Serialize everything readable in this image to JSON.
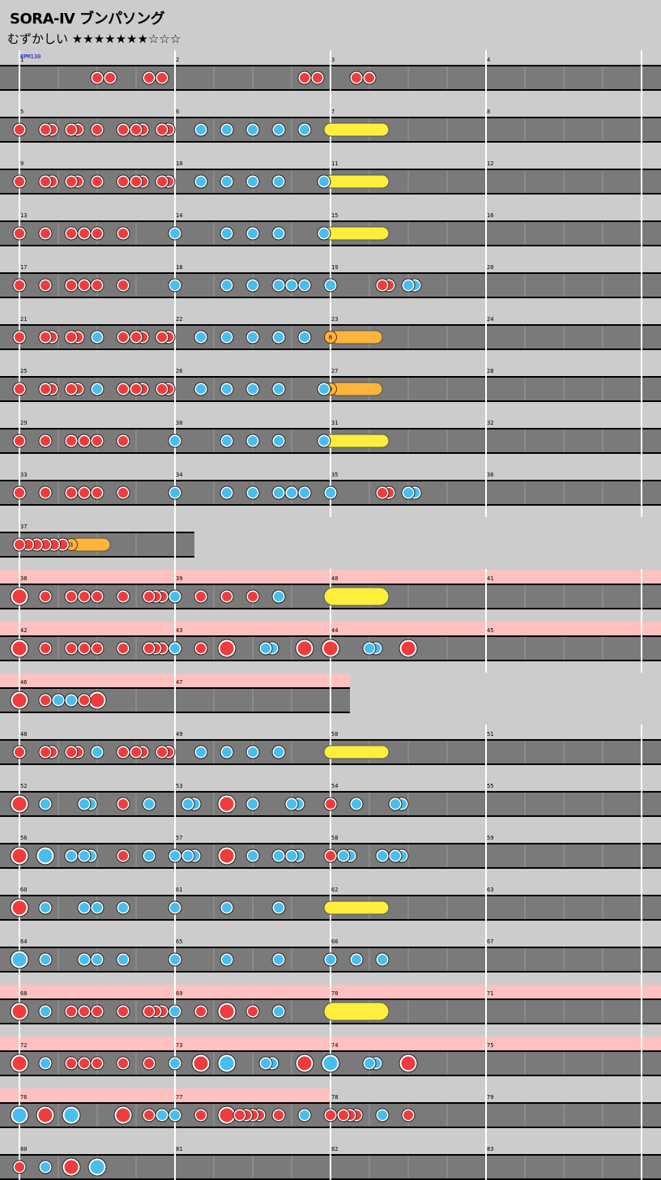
{
  "header": {
    "title": "SORA-Ⅳ ブンパソング",
    "difficulty_label": "むずかしい",
    "stars_filled": 7,
    "stars_total": 10,
    "stars_text": "★★★★★★★☆☆☆",
    "bpm_label": "BPM130"
  },
  "colors": {
    "background": "#cccccc",
    "lane": "#7a7a7a",
    "gogo_band": "#ffc0c0",
    "don": "#f03c3c",
    "ka": "#48bef0",
    "drumroll": "#ffee3c",
    "balloon": "#ffb43c"
  },
  "note_legend": {
    "d": "don",
    "k": "ka",
    "D": "big don",
    "K": "big ka",
    "R": "drumroll",
    "Y": "big drumroll",
    "B": "balloon"
  },
  "rows": [
    {
      "m": [
        1,
        2,
        3,
        4
      ],
      "g": 0,
      "n": [
        [
          6,
          "d"
        ],
        [
          7,
          "d"
        ],
        [
          10,
          "d"
        ],
        [
          11,
          "d"
        ],
        [
          22,
          "d"
        ],
        [
          23,
          "d"
        ],
        [
          26,
          "d"
        ],
        [
          27,
          "d"
        ]
      ]
    },
    {
      "m": [
        5,
        6,
        7,
        8
      ],
      "g": 0,
      "n": [
        [
          0,
          "d"
        ],
        [
          2,
          "d"
        ],
        [
          2.5,
          "d"
        ],
        [
          4,
          "d"
        ],
        [
          4.5,
          "d"
        ],
        [
          6,
          "d"
        ],
        [
          8,
          "d"
        ],
        [
          9,
          "d"
        ],
        [
          9.5,
          "d"
        ],
        [
          11,
          "d"
        ],
        [
          11.5,
          "d"
        ],
        [
          14,
          "k"
        ],
        [
          16,
          "k"
        ],
        [
          18,
          "k"
        ],
        [
          20,
          "k"
        ],
        [
          22,
          "k"
        ],
        [
          24,
          "R",
          28
        ]
      ]
    },
    {
      "m": [
        9,
        10,
        11,
        12
      ],
      "g": 0,
      "n": [
        [
          0,
          "d"
        ],
        [
          2,
          "d"
        ],
        [
          2.5,
          "d"
        ],
        [
          4,
          "d"
        ],
        [
          4.5,
          "d"
        ],
        [
          6,
          "d"
        ],
        [
          8,
          "d"
        ],
        [
          9,
          "d"
        ],
        [
          9.5,
          "d"
        ],
        [
          11,
          "d"
        ],
        [
          11.5,
          "d"
        ],
        [
          14,
          "k"
        ],
        [
          16,
          "k"
        ],
        [
          18,
          "k"
        ],
        [
          20,
          "k"
        ],
        [
          23.5,
          "k"
        ],
        [
          24,
          "R",
          28
        ]
      ]
    },
    {
      "m": [
        13,
        14,
        15,
        16
      ],
      "g": 0,
      "n": [
        [
          0,
          "d"
        ],
        [
          2,
          "d"
        ],
        [
          4,
          "d"
        ],
        [
          5,
          "d"
        ],
        [
          6,
          "d"
        ],
        [
          8,
          "d"
        ],
        [
          12,
          "k"
        ],
        [
          16,
          "k"
        ],
        [
          18,
          "k"
        ],
        [
          20,
          "k"
        ],
        [
          23.5,
          "k"
        ],
        [
          24,
          "R",
          28
        ]
      ]
    },
    {
      "m": [
        17,
        18,
        19,
        20
      ],
      "g": 0,
      "n": [
        [
          0,
          "d"
        ],
        [
          2,
          "d"
        ],
        [
          4,
          "d"
        ],
        [
          5,
          "d"
        ],
        [
          6,
          "d"
        ],
        [
          8,
          "d"
        ],
        [
          12,
          "k"
        ],
        [
          16,
          "k"
        ],
        [
          18,
          "k"
        ],
        [
          20,
          "k"
        ],
        [
          21,
          "k"
        ],
        [
          22,
          "k"
        ],
        [
          24,
          "k"
        ],
        [
          28,
          "d"
        ],
        [
          28.5,
          "d"
        ],
        [
          30,
          "k"
        ],
        [
          30.5,
          "k"
        ]
      ]
    },
    {
      "m": [
        21,
        22,
        23,
        24
      ],
      "g": 0,
      "n": [
        [
          0,
          "d"
        ],
        [
          2,
          "d"
        ],
        [
          2.5,
          "d"
        ],
        [
          4,
          "d"
        ],
        [
          4.5,
          "d"
        ],
        [
          6,
          "k"
        ],
        [
          8,
          "d"
        ],
        [
          9,
          "d"
        ],
        [
          9.5,
          "d"
        ],
        [
          11,
          "d"
        ],
        [
          11.5,
          "d"
        ],
        [
          14,
          "k"
        ],
        [
          16,
          "k"
        ],
        [
          18,
          "k"
        ],
        [
          20,
          "k"
        ],
        [
          22,
          "k"
        ],
        [
          24,
          "B",
          28,
          8
        ]
      ]
    },
    {
      "m": [
        25,
        26,
        27,
        28
      ],
      "g": 0,
      "n": [
        [
          0,
          "d"
        ],
        [
          2,
          "d"
        ],
        [
          2.5,
          "d"
        ],
        [
          4,
          "d"
        ],
        [
          4.5,
          "d"
        ],
        [
          6,
          "k"
        ],
        [
          8,
          "d"
        ],
        [
          9,
          "d"
        ],
        [
          9.5,
          "d"
        ],
        [
          11,
          "d"
        ],
        [
          11.5,
          "d"
        ],
        [
          14,
          "k"
        ],
        [
          16,
          "k"
        ],
        [
          18,
          "k"
        ],
        [
          20,
          "k"
        ],
        [
          23.5,
          "k"
        ],
        [
          24,
          "B",
          28,
          8
        ]
      ]
    },
    {
      "m": [
        29,
        30,
        31,
        32
      ],
      "g": 0,
      "n": [
        [
          0,
          "d"
        ],
        [
          2,
          "d"
        ],
        [
          4,
          "d"
        ],
        [
          5,
          "d"
        ],
        [
          6,
          "d"
        ],
        [
          8,
          "d"
        ],
        [
          12,
          "k"
        ],
        [
          16,
          "k"
        ],
        [
          18,
          "k"
        ],
        [
          20,
          "k"
        ],
        [
          23.5,
          "k"
        ],
        [
          24,
          "R",
          28
        ]
      ]
    },
    {
      "m": [
        33,
        34,
        35,
        36
      ],
      "g": 0,
      "n": [
        [
          0,
          "d"
        ],
        [
          2,
          "d"
        ],
        [
          4,
          "d"
        ],
        [
          5,
          "d"
        ],
        [
          6,
          "d"
        ],
        [
          8,
          "d"
        ],
        [
          12,
          "k"
        ],
        [
          16,
          "k"
        ],
        [
          18,
          "k"
        ],
        [
          20,
          "k"
        ],
        [
          21,
          "k"
        ],
        [
          22,
          "k"
        ],
        [
          24,
          "k"
        ],
        [
          28,
          "d"
        ],
        [
          28.5,
          "d"
        ],
        [
          30,
          "k"
        ],
        [
          30.5,
          "k"
        ]
      ]
    },
    {
      "m": [
        37
      ],
      "g": 0,
      "n": [
        [
          0,
          "d"
        ],
        [
          0.667,
          "d"
        ],
        [
          1.333,
          "d"
        ],
        [
          2,
          "d"
        ],
        [
          2.667,
          "d"
        ],
        [
          3.333,
          "d"
        ],
        [
          4,
          "B",
          7,
          3
        ]
      ]
    },
    {
      "m": [
        38,
        39,
        40,
        41
      ],
      "g": 1,
      "n": [
        [
          0,
          "D"
        ],
        [
          2,
          "d"
        ],
        [
          4,
          "d"
        ],
        [
          5,
          "d"
        ],
        [
          6,
          "d"
        ],
        [
          8,
          "d"
        ],
        [
          10,
          "d"
        ],
        [
          10.5,
          "d"
        ],
        [
          11,
          "d"
        ],
        [
          12,
          "k"
        ],
        [
          14,
          "d"
        ],
        [
          16,
          "d"
        ],
        [
          18,
          "d"
        ],
        [
          20,
          "k"
        ],
        [
          24,
          "Y",
          28
        ]
      ]
    },
    {
      "m": [
        42,
        43,
        44,
        45
      ],
      "g": 1,
      "n": [
        [
          0,
          "D"
        ],
        [
          2,
          "d"
        ],
        [
          4,
          "d"
        ],
        [
          5,
          "d"
        ],
        [
          6,
          "d"
        ],
        [
          8,
          "d"
        ],
        [
          10,
          "d"
        ],
        [
          10.5,
          "d"
        ],
        [
          11,
          "d"
        ],
        [
          12,
          "k"
        ],
        [
          14,
          "d"
        ],
        [
          16,
          "D"
        ],
        [
          19,
          "k"
        ],
        [
          19.5,
          "k"
        ],
        [
          22,
          "D"
        ],
        [
          24,
          "D"
        ],
        [
          27,
          "k"
        ],
        [
          27.5,
          "k"
        ],
        [
          30,
          "D"
        ]
      ]
    },
    {
      "m": [
        46,
        47
      ],
      "g": 1,
      "n": [
        [
          0,
          "D"
        ],
        [
          2,
          "d"
        ],
        [
          3,
          "k"
        ],
        [
          4,
          "k"
        ],
        [
          5,
          "d"
        ],
        [
          6,
          "D"
        ]
      ]
    },
    {
      "m": [
        48,
        49,
        50,
        51
      ],
      "g": 0,
      "n": [
        [
          0,
          "d"
        ],
        [
          2,
          "d"
        ],
        [
          2.5,
          "d"
        ],
        [
          4,
          "d"
        ],
        [
          4.5,
          "d"
        ],
        [
          6,
          "k"
        ],
        [
          8,
          "d"
        ],
        [
          9,
          "d"
        ],
        [
          9.5,
          "d"
        ],
        [
          11,
          "d"
        ],
        [
          11.5,
          "d"
        ],
        [
          14,
          "k"
        ],
        [
          16,
          "k"
        ],
        [
          18,
          "k"
        ],
        [
          20,
          "k"
        ],
        [
          24,
          "R",
          28
        ]
      ]
    },
    {
      "m": [
        52,
        53,
        54,
        55
      ],
      "g": 0,
      "n": [
        [
          0,
          "D"
        ],
        [
          2,
          "k"
        ],
        [
          5,
          "k"
        ],
        [
          5.5,
          "k"
        ],
        [
          8,
          "d"
        ],
        [
          10,
          "k"
        ],
        [
          13,
          "k"
        ],
        [
          13.5,
          "k"
        ],
        [
          16,
          "D"
        ],
        [
          18,
          "k"
        ],
        [
          21,
          "k"
        ],
        [
          21.5,
          "k"
        ],
        [
          24,
          "d"
        ],
        [
          26,
          "k"
        ],
        [
          29,
          "k"
        ],
        [
          29.5,
          "k"
        ]
      ]
    },
    {
      "m": [
        56,
        57,
        58,
        59
      ],
      "g": 0,
      "n": [
        [
          0,
          "D"
        ],
        [
          2,
          "K"
        ],
        [
          4,
          "k"
        ],
        [
          5,
          "k"
        ],
        [
          5.5,
          "k"
        ],
        [
          8,
          "d"
        ],
        [
          10,
          "k"
        ],
        [
          12,
          "k"
        ],
        [
          13,
          "k"
        ],
        [
          13.5,
          "k"
        ],
        [
          16,
          "D"
        ],
        [
          18,
          "k"
        ],
        [
          20,
          "k"
        ],
        [
          21,
          "k"
        ],
        [
          21.5,
          "k"
        ],
        [
          24,
          "d"
        ],
        [
          25,
          "k"
        ],
        [
          25.5,
          "k"
        ],
        [
          28,
          "k"
        ],
        [
          29,
          "k"
        ],
        [
          29.5,
          "k"
        ]
      ]
    },
    {
      "m": [
        60,
        61,
        62,
        63
      ],
      "g": 0,
      "n": [
        [
          0,
          "D"
        ],
        [
          2,
          "k"
        ],
        [
          5,
          "k"
        ],
        [
          6,
          "k"
        ],
        [
          8,
          "k"
        ],
        [
          12,
          "k"
        ],
        [
          16,
          "k"
        ],
        [
          20,
          "k"
        ],
        [
          24,
          "R",
          28
        ]
      ]
    },
    {
      "m": [
        64,
        65,
        66,
        67
      ],
      "g": 0,
      "n": [
        [
          0,
          "K"
        ],
        [
          2,
          "k"
        ],
        [
          5,
          "k"
        ],
        [
          6,
          "k"
        ],
        [
          8,
          "k"
        ],
        [
          12,
          "k"
        ],
        [
          16,
          "k"
        ],
        [
          20,
          "k"
        ],
        [
          24,
          "k"
        ],
        [
          26,
          "k"
        ],
        [
          28,
          "k"
        ]
      ]
    },
    {
      "m": [
        68,
        69,
        70,
        71
      ],
      "g": 1,
      "n": [
        [
          0,
          "D"
        ],
        [
          2,
          "k"
        ],
        [
          4,
          "d"
        ],
        [
          5,
          "d"
        ],
        [
          6,
          "d"
        ],
        [
          8,
          "d"
        ],
        [
          10,
          "d"
        ],
        [
          10.5,
          "d"
        ],
        [
          11,
          "d"
        ],
        [
          12,
          "k"
        ],
        [
          14,
          "d"
        ],
        [
          16,
          "D"
        ],
        [
          18,
          "d"
        ],
        [
          20,
          "k"
        ],
        [
          24,
          "Y",
          28
        ]
      ]
    },
    {
      "m": [
        72,
        73,
        74,
        75
      ],
      "g": 1,
      "n": [
        [
          0,
          "D"
        ],
        [
          2,
          "k"
        ],
        [
          4,
          "d"
        ],
        [
          5,
          "d"
        ],
        [
          6,
          "d"
        ],
        [
          8,
          "d"
        ],
        [
          10,
          "d"
        ],
        [
          12,
          "k"
        ],
        [
          14,
          "D"
        ],
        [
          16,
          "K"
        ],
        [
          19,
          "k"
        ],
        [
          19.5,
          "k"
        ],
        [
          22,
          "D"
        ],
        [
          24,
          "K"
        ],
        [
          27,
          "k"
        ],
        [
          27.5,
          "k"
        ],
        [
          30,
          "D"
        ]
      ]
    },
    {
      "m": [
        76,
        77,
        78,
        79
      ],
      "g": 1,
      "gw": 2,
      "n": [
        [
          0,
          "K"
        ],
        [
          2,
          "D"
        ],
        [
          4,
          "K"
        ],
        [
          8,
          "D"
        ],
        [
          10,
          "d"
        ],
        [
          11,
          "k"
        ],
        [
          12,
          "k"
        ],
        [
          14,
          "d"
        ],
        [
          16,
          "D"
        ],
        [
          17,
          "d"
        ],
        [
          17.5,
          "d"
        ],
        [
          18,
          "d"
        ],
        [
          18.5,
          "d"
        ],
        [
          20,
          "d"
        ],
        [
          22,
          "k"
        ],
        [
          24,
          "d"
        ],
        [
          25,
          "d"
        ],
        [
          25.5,
          "d"
        ],
        [
          26,
          "d"
        ],
        [
          28,
          "k"
        ],
        [
          30,
          "d"
        ]
      ]
    },
    {
      "m": [
        80,
        81,
        82,
        83
      ],
      "g": 0,
      "n": [
        [
          0,
          "d"
        ],
        [
          2,
          "k"
        ],
        [
          4,
          "D"
        ],
        [
          6,
          "K"
        ]
      ]
    }
  ]
}
